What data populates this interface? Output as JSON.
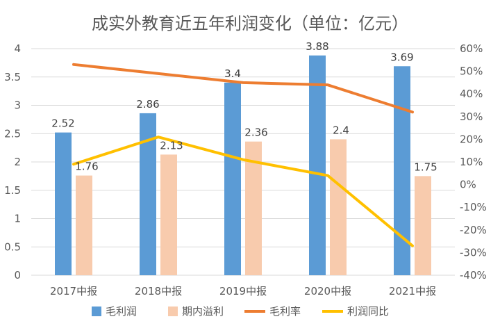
{
  "chart_data": {
    "type": "bar",
    "title": "成实外教育近五年利润变化（单位：亿元）",
    "categories": [
      "2017中报",
      "2018中报",
      "2019中报",
      "2020中报",
      "2021中报"
    ],
    "series": [
      {
        "name": "毛利润",
        "kind": "bar",
        "axis": "left",
        "color": "#5b9bd5",
        "values": [
          2.52,
          2.86,
          3.4,
          3.88,
          3.69
        ],
        "labels": [
          "2.52",
          "2.86",
          "3.4",
          "3.88",
          "3.69"
        ]
      },
      {
        "name": "期内溢利",
        "kind": "bar",
        "axis": "left",
        "color": "#f8cbad",
        "values": [
          1.76,
          2.13,
          2.36,
          2.4,
          1.75
        ],
        "labels": [
          "1.76",
          "2.13",
          "2.36",
          "2.4",
          "1.75"
        ]
      },
      {
        "name": "毛利率",
        "kind": "line",
        "axis": "right",
        "color": "#ed7d31",
        "values": [
          53,
          49,
          45,
          44,
          32
        ]
      },
      {
        "name": "利润同比",
        "kind": "line",
        "axis": "right",
        "color": "#ffc000",
        "values": [
          9,
          21,
          11,
          4,
          -27
        ]
      }
    ],
    "left_axis": {
      "min": 0,
      "max": 4,
      "ticks": [
        "0",
        "0.5",
        "1",
        "1.5",
        "2",
        "2.5",
        "3",
        "3.5",
        "4"
      ]
    },
    "right_axis": {
      "min": -40,
      "max": 60,
      "ticks": [
        "-40%",
        "-30%",
        "-20%",
        "-10%",
        "0%",
        "10%",
        "20%",
        "30%",
        "40%",
        "50%",
        "60%"
      ]
    },
    "grid": true,
    "legend_position": "bottom"
  }
}
